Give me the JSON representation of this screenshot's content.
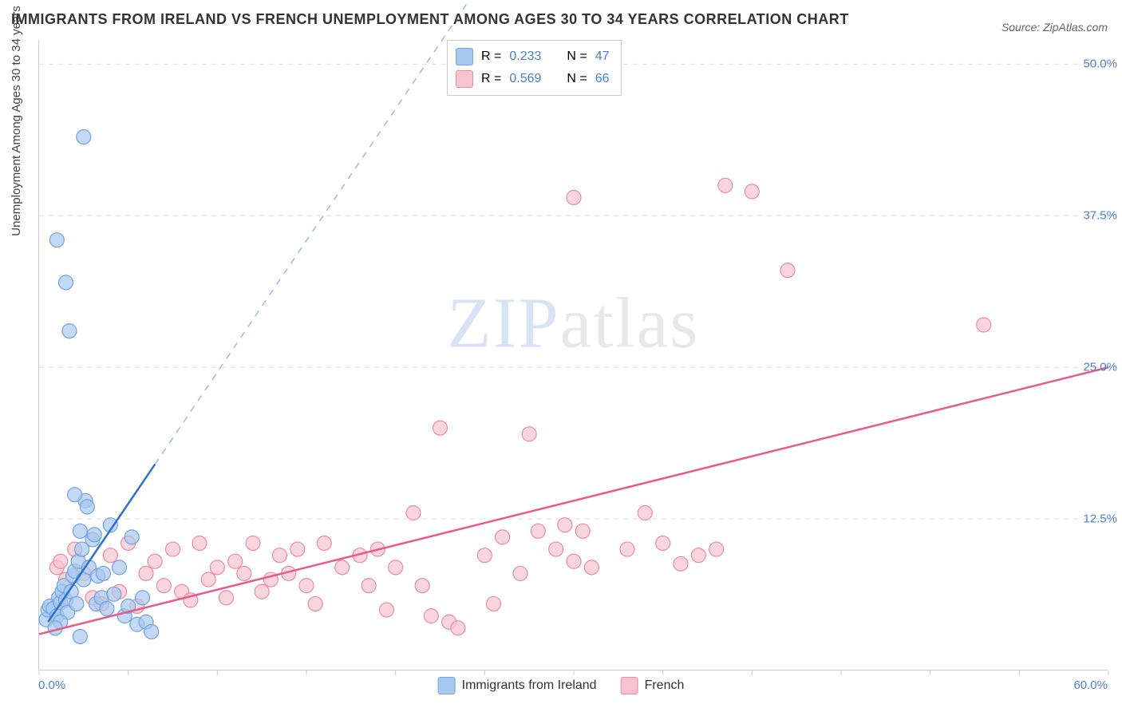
{
  "title": "IMMIGRANTS FROM IRELAND VS FRENCH UNEMPLOYMENT AMONG AGES 30 TO 34 YEARS CORRELATION CHART",
  "source": "Source: ZipAtlas.com",
  "watermark_zip": "ZIP",
  "watermark_atlas": "atlas",
  "y_axis_title": "Unemployment Among Ages 30 to 34 years",
  "axis": {
    "xlim": [
      0,
      60
    ],
    "ylim": [
      0,
      52
    ],
    "xlabel_start": "0.0%",
    "xlabel_end": "60.0%",
    "ylabels": [
      {
        "v": 12.5,
        "t": "12.5%"
      },
      {
        "v": 25.0,
        "t": "25.0%"
      },
      {
        "v": 37.5,
        "t": "37.5%"
      },
      {
        "v": 50.0,
        "t": "50.0%"
      }
    ],
    "xticks": [
      0,
      5,
      10,
      15,
      20,
      25,
      30,
      35,
      40,
      45,
      50,
      55,
      60
    ],
    "grid_color": "#dddddd",
    "border_color": "#cccccc",
    "label_color": "#4a7fd3",
    "label_fontsize": 15
  },
  "series": {
    "ireland": {
      "name": "Immigrants from Ireland",
      "fill": "#a8c7ee",
      "stroke": "#6fa3e0",
      "line_color": "#2f6fd1",
      "marker_r": 9,
      "marker_opacity": 0.7,
      "R_label": "R =",
      "R": "0.233",
      "N_label": "N =",
      "N": "47",
      "trend": {
        "x1": 0.5,
        "y1": 4.0,
        "x2": 6.5,
        "y2": 17.0,
        "dash_x2": 24.0,
        "dash_y2": 55.0
      },
      "points": [
        [
          0.4,
          4.2
        ],
        [
          0.5,
          5.0
        ],
        [
          0.6,
          5.3
        ],
        [
          0.8,
          5.1
        ],
        [
          1.0,
          4.5
        ],
        [
          1.1,
          6.0
        ],
        [
          1.2,
          5.6
        ],
        [
          1.3,
          6.5
        ],
        [
          1.4,
          7.0
        ],
        [
          1.5,
          5.8
        ],
        [
          1.6,
          4.8
        ],
        [
          1.8,
          6.5
        ],
        [
          1.9,
          7.8
        ],
        [
          2.0,
          8.2
        ],
        [
          2.1,
          5.5
        ],
        [
          2.2,
          9.0
        ],
        [
          2.3,
          11.5
        ],
        [
          2.4,
          10.0
        ],
        [
          2.5,
          7.5
        ],
        [
          2.6,
          14.0
        ],
        [
          2.7,
          13.5
        ],
        [
          2.8,
          8.5
        ],
        [
          3.0,
          10.8
        ],
        [
          3.1,
          11.2
        ],
        [
          3.2,
          5.5
        ],
        [
          3.3,
          7.8
        ],
        [
          3.5,
          6.0
        ],
        [
          3.6,
          8.0
        ],
        [
          3.8,
          5.1
        ],
        [
          4.0,
          12.0
        ],
        [
          4.2,
          6.3
        ],
        [
          4.5,
          8.5
        ],
        [
          4.8,
          4.5
        ],
        [
          5.0,
          5.3
        ],
        [
          5.2,
          11.0
        ],
        [
          5.5,
          3.8
        ],
        [
          5.8,
          6.0
        ],
        [
          6.0,
          4.0
        ],
        [
          6.3,
          3.2
        ],
        [
          2.0,
          14.5
        ],
        [
          1.7,
          28.0
        ],
        [
          1.5,
          32.0
        ],
        [
          1.0,
          35.5
        ],
        [
          2.5,
          44.0
        ],
        [
          1.2,
          4.0
        ],
        [
          0.9,
          3.5
        ],
        [
          2.3,
          2.8
        ]
      ]
    },
    "french": {
      "name": "French",
      "fill": "#f6c3ce",
      "stroke": "#ec8aa3",
      "line_color": "#e75a8a",
      "marker_r": 9,
      "marker_opacity": 0.7,
      "R_label": "R =",
      "R": "0.569",
      "N_label": "N =",
      "N": "66",
      "trend": {
        "x1": 0.0,
        "y1": 3.0,
        "x2": 60.0,
        "y2": 25.0
      },
      "points": [
        [
          1.0,
          8.5
        ],
        [
          1.2,
          9.0
        ],
        [
          1.5,
          7.5
        ],
        [
          2.0,
          10.0
        ],
        [
          2.5,
          8.0
        ],
        [
          3.0,
          6.0
        ],
        [
          3.5,
          5.5
        ],
        [
          4.0,
          9.5
        ],
        [
          4.5,
          6.5
        ],
        [
          5.0,
          10.5
        ],
        [
          5.5,
          5.3
        ],
        [
          6.0,
          8.0
        ],
        [
          6.5,
          9.0
        ],
        [
          7.0,
          7.0
        ],
        [
          7.5,
          10.0
        ],
        [
          8.0,
          6.5
        ],
        [
          8.5,
          5.8
        ],
        [
          9.0,
          10.5
        ],
        [
          9.5,
          7.5
        ],
        [
          10.0,
          8.5
        ],
        [
          10.5,
          6.0
        ],
        [
          11.0,
          9.0
        ],
        [
          11.5,
          8.0
        ],
        [
          12.0,
          10.5
        ],
        [
          12.5,
          6.5
        ],
        [
          13.0,
          7.5
        ],
        [
          13.5,
          9.5
        ],
        [
          14.0,
          8.0
        ],
        [
          14.5,
          10.0
        ],
        [
          15.0,
          7.0
        ],
        [
          15.5,
          5.5
        ],
        [
          16.0,
          10.5
        ],
        [
          17.0,
          8.5
        ],
        [
          18.0,
          9.5
        ],
        [
          18.5,
          7.0
        ],
        [
          19.0,
          10.0
        ],
        [
          19.5,
          5.0
        ],
        [
          20.0,
          8.5
        ],
        [
          21.0,
          13.0
        ],
        [
          21.5,
          7.0
        ],
        [
          22.0,
          4.5
        ],
        [
          23.0,
          4.0
        ],
        [
          23.5,
          3.5
        ],
        [
          22.5,
          20.0
        ],
        [
          25.0,
          9.5
        ],
        [
          25.5,
          5.5
        ],
        [
          26.0,
          11.0
        ],
        [
          27.0,
          8.0
        ],
        [
          27.5,
          19.5
        ],
        [
          28.0,
          11.5
        ],
        [
          29.0,
          10.0
        ],
        [
          29.5,
          12.0
        ],
        [
          30.0,
          9.0
        ],
        [
          30.5,
          11.5
        ],
        [
          31.0,
          8.5
        ],
        [
          33.0,
          10.0
        ],
        [
          34.0,
          13.0
        ],
        [
          35.0,
          10.5
        ],
        [
          37.0,
          9.5
        ],
        [
          38.0,
          10.0
        ],
        [
          40.0,
          39.5
        ],
        [
          42.0,
          33.0
        ],
        [
          38.5,
          40.0
        ],
        [
          30.0,
          39.0
        ],
        [
          53.0,
          28.5
        ],
        [
          36.0,
          8.8
        ]
      ]
    }
  }
}
